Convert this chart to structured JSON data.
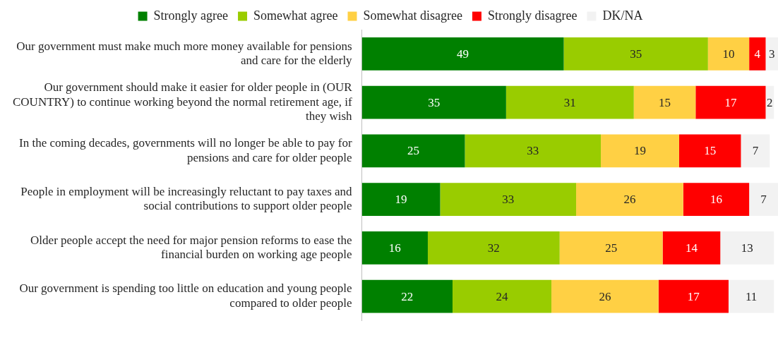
{
  "chart_data": {
    "type": "bar",
    "orientation": "horizontal",
    "stacked": true,
    "data_labels": true,
    "legend": "top",
    "grid": false,
    "tick_labels": "y",
    "xlim": [
      0,
      101
    ],
    "categories": [
      "Our government must make much more money available for pensions and care for the elderly",
      "Our government should make it easier for older people in (OUR COUNTRY) to continue working beyond the normal retirement age, if they wish",
      "In the coming decades, governments will no longer be able to pay for pensions and care for older people",
      "People in employment will be increasingly reluctant to pay taxes and social contributions to support older people",
      "Older people accept the need for major pension reforms to ease the financial burden on working age people",
      "Our government is spending too little on education and young people compared to older people"
    ],
    "series": [
      {
        "name": "Strongly agree",
        "color": "#008000",
        "values": [
          49,
          35,
          25,
          19,
          16,
          22
        ]
      },
      {
        "name": "Somewhat agree",
        "color": "#99cc00",
        "values": [
          35,
          31,
          33,
          33,
          32,
          24
        ]
      },
      {
        "name": "Somewhat disagree",
        "color": "#ffd044",
        "values": [
          10,
          15,
          19,
          26,
          25,
          26
        ]
      },
      {
        "name": "Strongly disagree",
        "color": "#ff0000",
        "values": [
          4,
          17,
          15,
          16,
          14,
          17
        ]
      },
      {
        "name": "DK/NA",
        "color": "#f2f2f2",
        "values": [
          3,
          2,
          7,
          7,
          13,
          11
        ]
      }
    ]
  }
}
